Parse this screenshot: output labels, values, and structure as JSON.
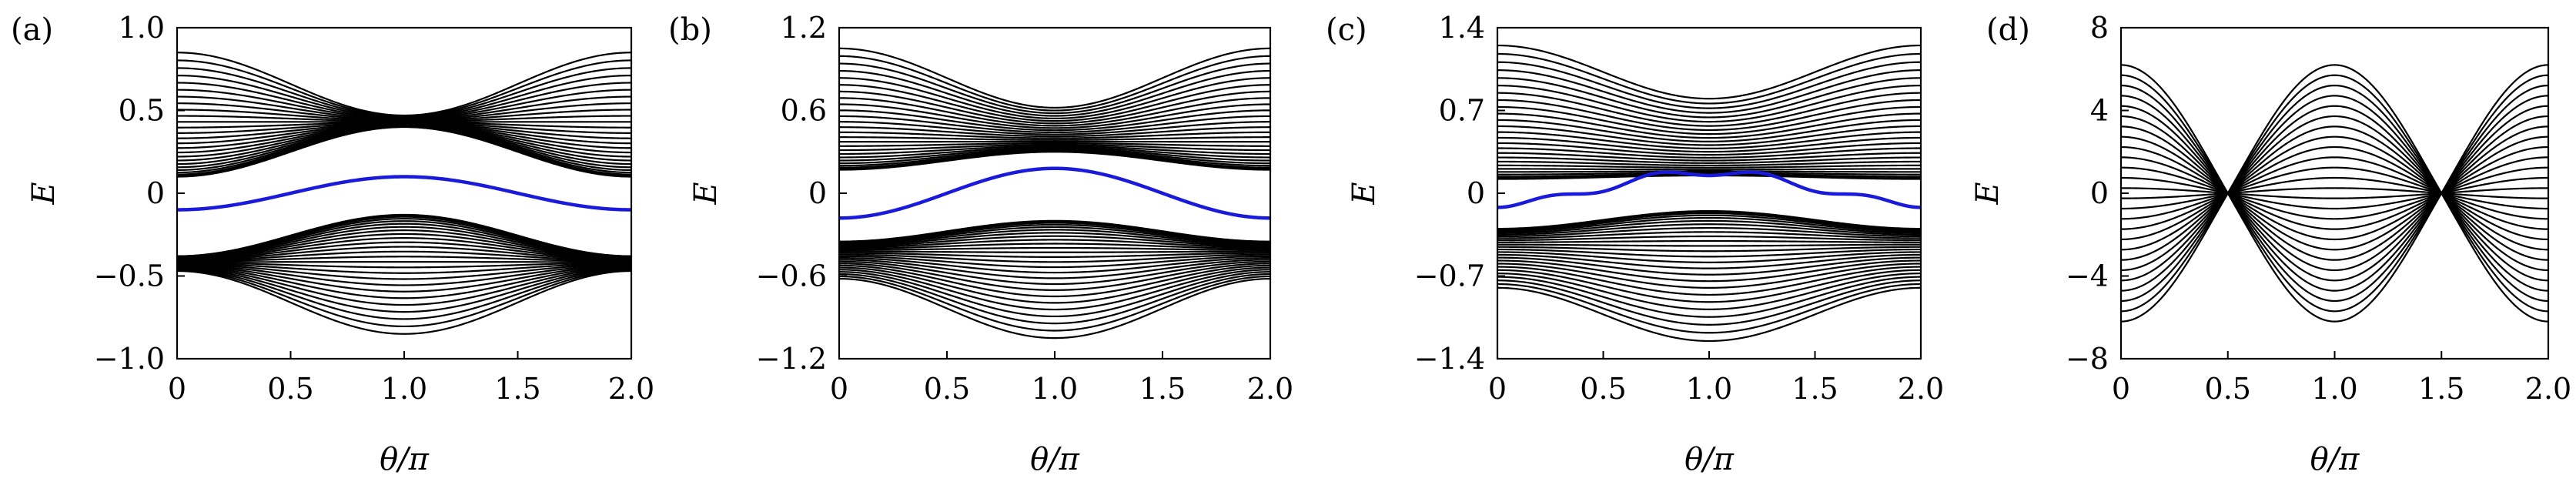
{
  "chart_data": [
    {
      "type": "line",
      "panel_label": "(a)",
      "xlabel": "θ/π",
      "ylabel": "E",
      "xlim": [
        0,
        2
      ],
      "ylim": [
        -1.0,
        1.0
      ],
      "xticks": [
        "0",
        "0.5",
        "1.0",
        "1.5",
        "2.0"
      ],
      "xtick_values": [
        0,
        0.5,
        1.0,
        1.5,
        2.0
      ],
      "yticks": [
        "−1.0",
        "−0.5",
        "0",
        "0.5",
        "1.0"
      ],
      "ytick_values": [
        -1.0,
        -0.5,
        0,
        0.5,
        1.0
      ],
      "bands": {
        "count": 26,
        "color": "#000000",
        "upper": {
          "outer_0": 0.85,
          "outer_1": 0.47,
          "inner_0": 0.1,
          "inner_1": 0.4
        },
        "lower": {
          "outer_0": -0.47,
          "outer_1": -0.85,
          "inner_0": -0.38,
          "inner_1": -0.13
        }
      },
      "edge_state": {
        "color": "#1a1adb",
        "values_at_0_and_1": [
          -0.1,
          0.1
        ]
      }
    },
    {
      "type": "line",
      "panel_label": "(b)",
      "xlabel": "θ/π",
      "ylabel": "E",
      "xlim": [
        0,
        2
      ],
      "ylim": [
        -1.2,
        1.2
      ],
      "xticks": [
        "0",
        "0.5",
        "1.0",
        "1.5",
        "2.0"
      ],
      "xtick_values": [
        0,
        0.5,
        1.0,
        1.5,
        2.0
      ],
      "yticks": [
        "−1.2",
        "−0.6",
        "0",
        "0.6",
        "1.2"
      ],
      "ytick_values": [
        -1.2,
        -0.6,
        0,
        0.6,
        1.2
      ],
      "bands": {
        "count": 26,
        "color": "#000000",
        "upper": {
          "outer_0": 1.05,
          "outer_1": 0.62,
          "inner_0": 0.17,
          "inner_1": 0.3
        },
        "lower": {
          "outer_0": -0.62,
          "outer_1": -1.05,
          "inner_0": -0.35,
          "inner_1": -0.2
        }
      },
      "edge_state": {
        "color": "#1a1adb",
        "values_at_0_and_1": [
          -0.18,
          0.18
        ]
      }
    },
    {
      "type": "line",
      "panel_label": "(c)",
      "xlabel": "θ/π",
      "ylabel": "E",
      "xlim": [
        0,
        2
      ],
      "ylim": [
        -1.4,
        1.4
      ],
      "xticks": [
        "0",
        "0.5",
        "1.0",
        "1.5",
        "2.0"
      ],
      "xtick_values": [
        0,
        0.5,
        1.0,
        1.5,
        2.0
      ],
      "yticks": [
        "−1.4",
        "−0.7",
        "0",
        "0.7",
        "1.4"
      ],
      "ytick_values": [
        -1.4,
        -0.7,
        0,
        0.7,
        1.4
      ],
      "bands": {
        "count": 26,
        "color": "#000000",
        "upper": {
          "outer_0": 1.25,
          "outer_1": 0.8,
          "inner_0": 0.12,
          "inner_1": 0.15
        },
        "lower": {
          "outer_0": -0.8,
          "outer_1": -1.25,
          "inner_0": -0.3,
          "inner_1": -0.15
        }
      },
      "edge_state": {
        "color": "#1a1adb",
        "values_at_0_and_1": [
          -0.12,
          0.15
        ]
      }
    },
    {
      "type": "line",
      "panel_label": "(d)",
      "xlabel": "θ/π",
      "ylabel": "E",
      "xlim": [
        0,
        2
      ],
      "ylim": [
        -8,
        8
      ],
      "xticks": [
        "0",
        "0.5",
        "1.0",
        "1.5",
        "2.0"
      ],
      "xtick_values": [
        0,
        0.5,
        1.0,
        1.5,
        2.0
      ],
      "yticks": [
        "−8",
        "−4",
        "0",
        "4",
        "8"
      ],
      "ytick_values": [
        -8,
        -4,
        0,
        4,
        8
      ],
      "bands": {
        "count": 26,
        "color": "#000000",
        "amplitude_max": 6.2,
        "crossings_x": [
          0.5,
          1.5
        ]
      }
    }
  ]
}
